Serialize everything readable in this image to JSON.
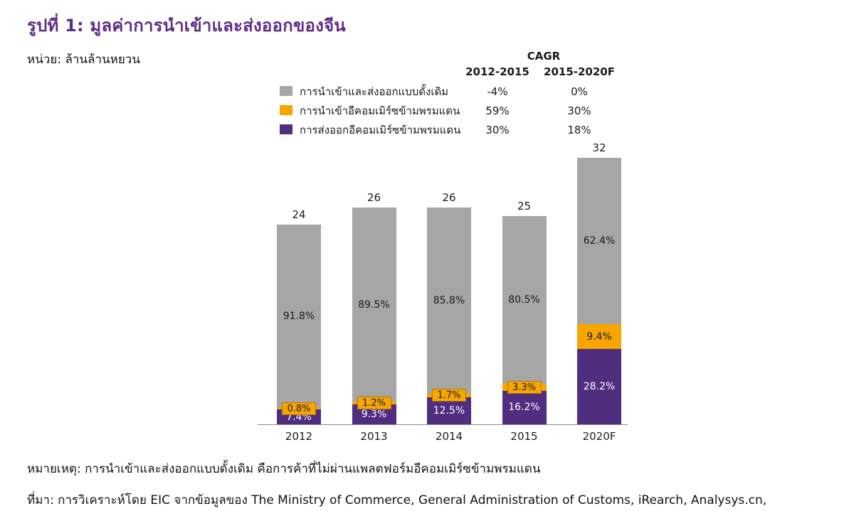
{
  "title": "รูปที่ 1:  มูลค่าการนำเข้าและส่งออกของจีน",
  "unit_label": "หน่วย: ล้านล้านหยวน",
  "cagr": {
    "header": "CAGR",
    "col1": "2012-2015",
    "col2": "2015-2020F"
  },
  "legend": [
    {
      "name": "การนำเข้าและส่งออกแบบดั้งเดิม",
      "color": "#a6a6a6",
      "cagr1": "-4%",
      "cagr2": "0%"
    },
    {
      "name": "การนำเข้าอีคอมเมิร์ซข้ามพรมแดน",
      "color": "#f7a600",
      "cagr1": "59%",
      "cagr2": "30%"
    },
    {
      "name": "การส่งออกอีคอมเมิร์ซข้ามพรมแดน",
      "color": "#4f2d7f",
      "cagr1": "30%",
      "cagr2": "18%"
    }
  ],
  "chart_data": {
    "type": "bar",
    "stacked": true,
    "title": "มูลค่าการนำเข้าและส่งออกของจีน",
    "ylabel": "ล้านล้านหยวน",
    "ylim": [
      0,
      33
    ],
    "grid": false,
    "legend_position": "top",
    "categories": [
      "2012",
      "2013",
      "2014",
      "2015",
      "2020F"
    ],
    "totals": [
      24,
      26,
      26,
      25,
      32
    ],
    "series": [
      {
        "name": "การส่งออกอีคอมเมิร์ซข้ามพรมแดน",
        "color": "#4f2d7f",
        "unit": "% of total",
        "values": [
          7.4,
          9.3,
          12.5,
          16.2,
          28.2
        ]
      },
      {
        "name": "การนำเข้าอีคอมเมิร์ซข้ามพรมแดน",
        "color": "#f7a600",
        "unit": "% of total",
        "values": [
          0.8,
          1.2,
          1.7,
          3.3,
          9.4
        ]
      },
      {
        "name": "การนำเข้าและส่งออกแบบดั้งเดิม",
        "color": "#a6a6a6",
        "unit": "% of total",
        "values": [
          91.8,
          89.5,
          85.8,
          80.5,
          62.4
        ]
      }
    ]
  },
  "note": "หมายเหตุ: การนำเข้าและส่งออกแบบดั้งเดิม คือการค้าที่ไม่ผ่านแพลตฟอร์มอีคอมเมิร์ซข้ามพรมแดน",
  "source": "ที่มา: การวิเคราะห์โดย EIC จากข้อมูลของ The Ministry of Commerce, General Administration of Customs, iRearch, Analysys.cn,"
}
